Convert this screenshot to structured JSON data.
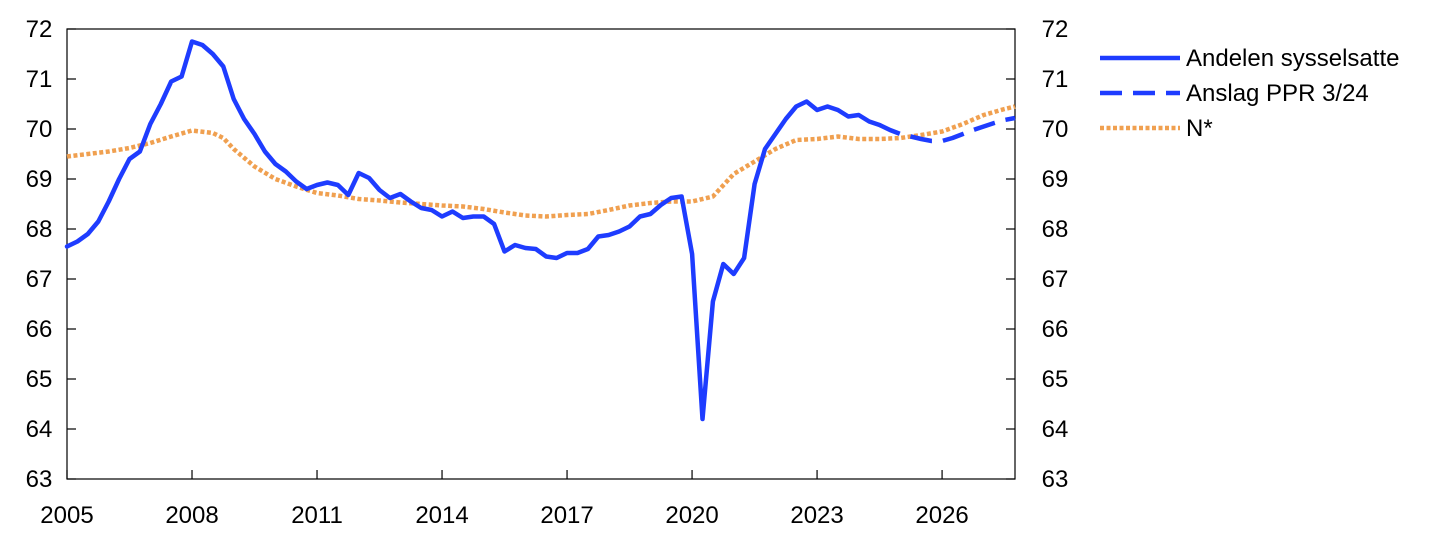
{
  "chart_data": {
    "type": "line",
    "title": "",
    "xlabel": "",
    "ylabel": "",
    "xlim": [
      2005.0,
      2027.75
    ],
    "ylim": [
      63,
      72
    ],
    "x_ticks": [
      2005,
      2008,
      2011,
      2014,
      2017,
      2020,
      2023,
      2026
    ],
    "x_tick_labels": [
      "2005",
      "2008",
      "2011",
      "2014",
      "2017",
      "2020",
      "2023",
      "2026"
    ],
    "y_ticks": [
      63,
      64,
      65,
      66,
      67,
      68,
      69,
      70,
      71,
      72
    ],
    "y_tick_labels": [
      "63",
      "64",
      "65",
      "66",
      "67",
      "68",
      "69",
      "70",
      "71",
      "72"
    ],
    "grid": false,
    "legend_position": "right",
    "colors": {
      "employment": "#1e3cff",
      "forecast": "#1e3cff",
      "nstar": "#f0a050"
    },
    "series": [
      {
        "name": "Andelen sysselsatte",
        "style": "solid",
        "color": "#1e3cff",
        "points": [
          [
            2005.0,
            67.65
          ],
          [
            2005.25,
            67.75
          ],
          [
            2005.5,
            67.9
          ],
          [
            2005.75,
            68.15
          ],
          [
            2006.0,
            68.55
          ],
          [
            2006.25,
            69.0
          ],
          [
            2006.5,
            69.4
          ],
          [
            2006.75,
            69.55
          ],
          [
            2007.0,
            70.1
          ],
          [
            2007.25,
            70.5
          ],
          [
            2007.5,
            70.95
          ],
          [
            2007.75,
            71.05
          ],
          [
            2008.0,
            71.75
          ],
          [
            2008.25,
            71.68
          ],
          [
            2008.5,
            71.5
          ],
          [
            2008.75,
            71.25
          ],
          [
            2009.0,
            70.6
          ],
          [
            2009.25,
            70.2
          ],
          [
            2009.5,
            69.9
          ],
          [
            2009.75,
            69.55
          ],
          [
            2010.0,
            69.3
          ],
          [
            2010.25,
            69.15
          ],
          [
            2010.5,
            68.95
          ],
          [
            2010.75,
            68.8
          ],
          [
            2011.0,
            68.88
          ],
          [
            2011.25,
            68.93
          ],
          [
            2011.5,
            68.88
          ],
          [
            2011.75,
            68.68
          ],
          [
            2012.0,
            69.12
          ],
          [
            2012.25,
            69.02
          ],
          [
            2012.5,
            68.78
          ],
          [
            2012.75,
            68.62
          ],
          [
            2013.0,
            68.7
          ],
          [
            2013.25,
            68.55
          ],
          [
            2013.5,
            68.42
          ],
          [
            2013.75,
            68.38
          ],
          [
            2014.0,
            68.25
          ],
          [
            2014.25,
            68.35
          ],
          [
            2014.5,
            68.22
          ],
          [
            2014.75,
            68.25
          ],
          [
            2015.0,
            68.25
          ],
          [
            2015.25,
            68.1
          ],
          [
            2015.5,
            67.55
          ],
          [
            2015.75,
            67.68
          ],
          [
            2016.0,
            67.62
          ],
          [
            2016.25,
            67.6
          ],
          [
            2016.5,
            67.45
          ],
          [
            2016.75,
            67.42
          ],
          [
            2017.0,
            67.52
          ],
          [
            2017.25,
            67.52
          ],
          [
            2017.5,
            67.6
          ],
          [
            2017.75,
            67.85
          ],
          [
            2018.0,
            67.88
          ],
          [
            2018.25,
            67.95
          ],
          [
            2018.5,
            68.05
          ],
          [
            2018.75,
            68.25
          ],
          [
            2019.0,
            68.3
          ],
          [
            2019.25,
            68.48
          ],
          [
            2019.5,
            68.62
          ],
          [
            2019.75,
            68.65
          ],
          [
            2020.0,
            67.5
          ],
          [
            2020.25,
            64.2
          ],
          [
            2020.5,
            66.55
          ],
          [
            2020.75,
            67.3
          ],
          [
            2021.0,
            67.1
          ],
          [
            2021.25,
            67.42
          ],
          [
            2021.5,
            68.9
          ],
          [
            2021.75,
            69.6
          ],
          [
            2022.0,
            69.9
          ],
          [
            2022.25,
            70.2
          ],
          [
            2022.5,
            70.45
          ],
          [
            2022.75,
            70.55
          ],
          [
            2023.0,
            70.38
          ],
          [
            2023.25,
            70.45
          ],
          [
            2023.5,
            70.38
          ],
          [
            2023.75,
            70.25
          ],
          [
            2024.0,
            70.28
          ],
          [
            2024.25,
            70.15
          ],
          [
            2024.5,
            70.08
          ]
        ]
      },
      {
        "name": "Anslag PPR 3/24",
        "style": "dashed",
        "color": "#1e3cff",
        "points": [
          [
            2024.5,
            70.08
          ],
          [
            2024.75,
            69.98
          ],
          [
            2025.0,
            69.9
          ],
          [
            2025.25,
            69.85
          ],
          [
            2025.5,
            69.8
          ],
          [
            2025.75,
            69.76
          ],
          [
            2026.0,
            69.76
          ],
          [
            2026.25,
            69.82
          ],
          [
            2026.5,
            69.9
          ],
          [
            2026.75,
            69.98
          ],
          [
            2027.0,
            70.05
          ],
          [
            2027.25,
            70.12
          ],
          [
            2027.5,
            70.18
          ],
          [
            2027.75,
            70.22
          ]
        ]
      },
      {
        "name": "N*",
        "style": "dotted",
        "color": "#f0a050",
        "points": [
          [
            2005.0,
            69.45
          ],
          [
            2005.5,
            69.5
          ],
          [
            2006.0,
            69.55
          ],
          [
            2006.5,
            69.62
          ],
          [
            2007.0,
            69.72
          ],
          [
            2007.5,
            69.85
          ],
          [
            2008.0,
            69.97
          ],
          [
            2008.5,
            69.92
          ],
          [
            2008.75,
            69.82
          ],
          [
            2009.0,
            69.6
          ],
          [
            2009.5,
            69.25
          ],
          [
            2010.0,
            69.0
          ],
          [
            2010.5,
            68.85
          ],
          [
            2011.0,
            68.72
          ],
          [
            2011.5,
            68.67
          ],
          [
            2012.0,
            68.6
          ],
          [
            2012.5,
            68.57
          ],
          [
            2013.0,
            68.53
          ],
          [
            2013.5,
            68.5
          ],
          [
            2014.0,
            68.47
          ],
          [
            2014.5,
            68.45
          ],
          [
            2015.0,
            68.4
          ],
          [
            2015.5,
            68.33
          ],
          [
            2016.0,
            68.27
          ],
          [
            2016.5,
            68.25
          ],
          [
            2017.0,
            68.28
          ],
          [
            2017.5,
            68.3
          ],
          [
            2018.0,
            68.38
          ],
          [
            2018.5,
            68.47
          ],
          [
            2019.0,
            68.52
          ],
          [
            2019.5,
            68.55
          ],
          [
            2020.0,
            68.55
          ],
          [
            2020.5,
            68.65
          ],
          [
            2021.0,
            69.1
          ],
          [
            2021.5,
            69.35
          ],
          [
            2022.0,
            69.6
          ],
          [
            2022.5,
            69.78
          ],
          [
            2023.0,
            69.8
          ],
          [
            2023.5,
            69.85
          ],
          [
            2024.0,
            69.8
          ],
          [
            2024.5,
            69.8
          ],
          [
            2025.0,
            69.82
          ],
          [
            2025.5,
            69.88
          ],
          [
            2026.0,
            69.95
          ],
          [
            2026.5,
            70.1
          ],
          [
            2027.0,
            70.28
          ],
          [
            2027.5,
            70.4
          ],
          [
            2027.75,
            70.45
          ]
        ]
      }
    ]
  }
}
